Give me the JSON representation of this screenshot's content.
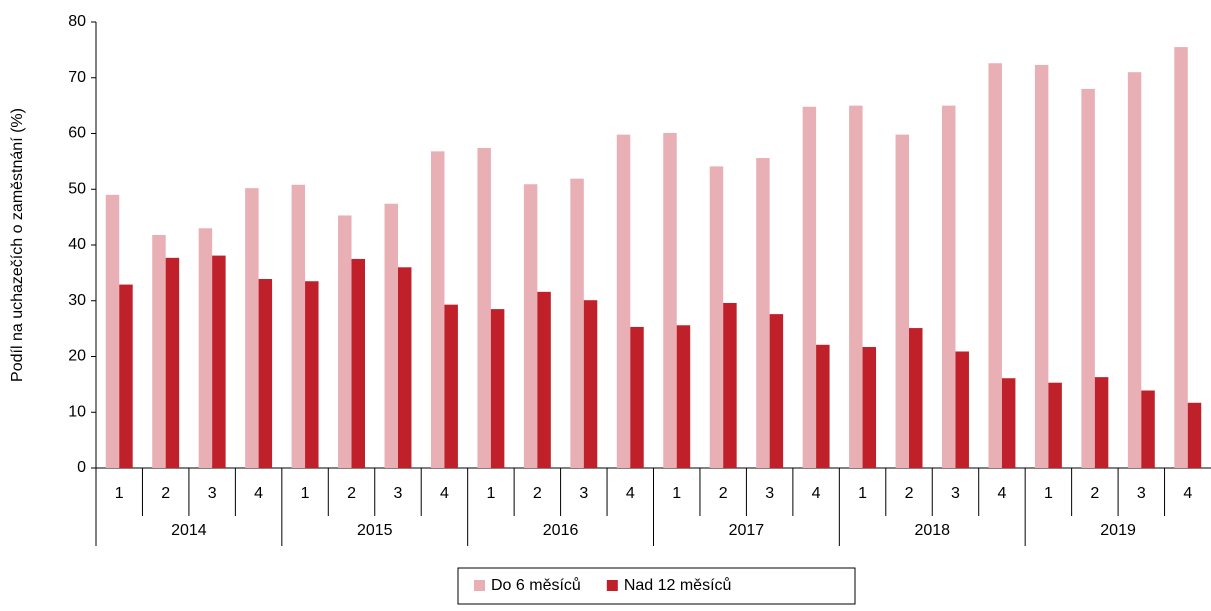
{
  "chart_data": {
    "type": "bar",
    "y_label": "Podíl na uchazečích o zaměstnání (%)",
    "groups": [
      {
        "name": "2014",
        "categories": [
          "1",
          "2",
          "3",
          "4"
        ]
      },
      {
        "name": "2015",
        "categories": [
          "1",
          "2",
          "3",
          "4"
        ]
      },
      {
        "name": "2016",
        "categories": [
          "1",
          "2",
          "3",
          "4"
        ]
      },
      {
        "name": "2017",
        "categories": [
          "1",
          "2",
          "3",
          "4"
        ]
      },
      {
        "name": "2018",
        "categories": [
          "1",
          "2",
          "3",
          "4"
        ]
      },
      {
        "name": "2019",
        "categories": [
          "1",
          "2",
          "3",
          "4"
        ]
      }
    ],
    "series": [
      {
        "name": "Do 6 měsíců",
        "color": "#e8b0b4",
        "values": [
          49,
          41.8,
          43,
          50.2,
          50.8,
          45.3,
          47.4,
          56.8,
          57.4,
          50.9,
          51.9,
          59.8,
          60.1,
          54.1,
          55.6,
          64.8,
          65,
          59.8,
          65,
          72.6,
          72.3,
          68,
          71,
          75.5
        ]
      },
      {
        "name": "Nad 12 měsíců",
        "color": "#c0202a",
        "values": [
          32.9,
          37.7,
          38.1,
          33.9,
          33.5,
          37.5,
          36,
          29.3,
          28.5,
          31.6,
          30.1,
          25.3,
          25.6,
          29.6,
          27.6,
          22.1,
          21.7,
          25.1,
          20.9,
          16.1,
          15.3,
          16.3,
          13.9,
          11.7
        ]
      }
    ],
    "ylim": [
      0,
      80
    ],
    "yticks": [
      0,
      10,
      20,
      30,
      40,
      50,
      60,
      70,
      80
    ],
    "grid": false,
    "legend": "bottom"
  }
}
